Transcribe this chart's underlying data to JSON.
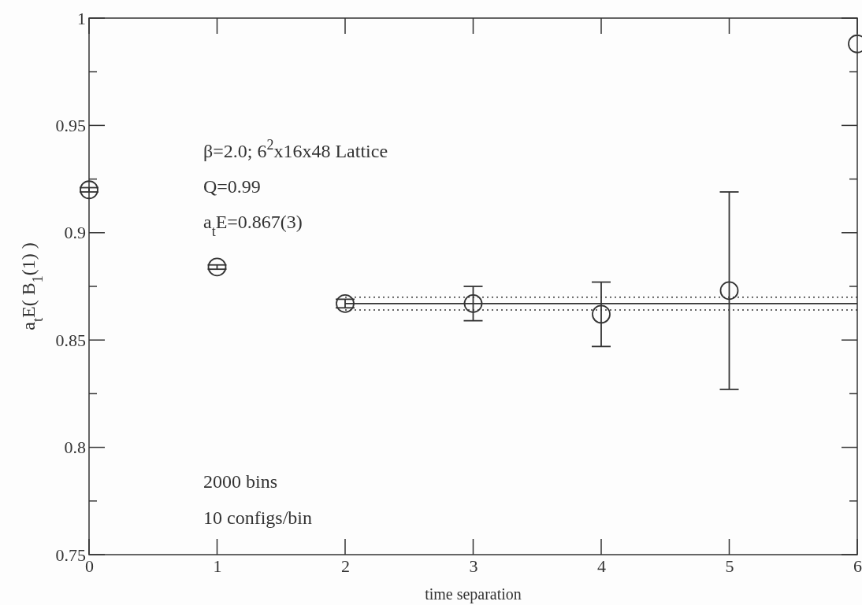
{
  "chart_data": {
    "type": "scatter",
    "xlabel": "time separation",
    "ylabel": "a$_{t}$E( B$_{1}$(1) )",
    "x": [
      0,
      1,
      2,
      3,
      4,
      5,
      6
    ],
    "xlim": [
      0,
      6
    ],
    "xticks": [
      0,
      1,
      2,
      3,
      4,
      5,
      6
    ],
    "ylim": [
      0.75,
      1
    ],
    "yticks": [
      0.75,
      {
        "value": 0.775,
        "label": null
      },
      0.8,
      {
        "value": 0.825,
        "label": null
      },
      0.85,
      {
        "value": 0.875,
        "label": null
      },
      0.9,
      {
        "value": 0.925,
        "label": null
      },
      0.95,
      {
        "value": 0.975,
        "label": null
      },
      1
    ],
    "marker": "circle",
    "grid": false,
    "series": [
      {
        "color": "#333333",
        "values": [
          0.92,
          0.884,
          0.867,
          0.867,
          0.862,
          0.873,
          0.988
        ],
        "errors": [
          0.001,
          0.001,
          0.002,
          0.008,
          0.015,
          0.046,
          null
        ]
      },
      {
        "type": "line",
        "color": "#333333",
        "values": [
          null,
          null,
          0.867,
          0.867,
          0.867,
          0.867,
          0.867
        ],
        "marker": "none",
        "line_style": "solid"
      },
      {
        "type": "line",
        "color": "#333333",
        "values": [
          null,
          null,
          0.87,
          0.87,
          0.87,
          0.87,
          0.87
        ],
        "marker": "none",
        "line_style": "dotted"
      },
      {
        "type": "line",
        "color": "#333333",
        "values": [
          null,
          null,
          0.864,
          0.864,
          0.864,
          0.864,
          0.864
        ],
        "marker": "none",
        "line_style": "dotted"
      }
    ],
    "annotations": [
      "β=2.0;  6$^{2}$x16x48 Lattice",
      "Q=0.99",
      "a$_{t}$E=0.867(3)",
      "2000 bins",
      "10 configs/bin"
    ]
  }
}
